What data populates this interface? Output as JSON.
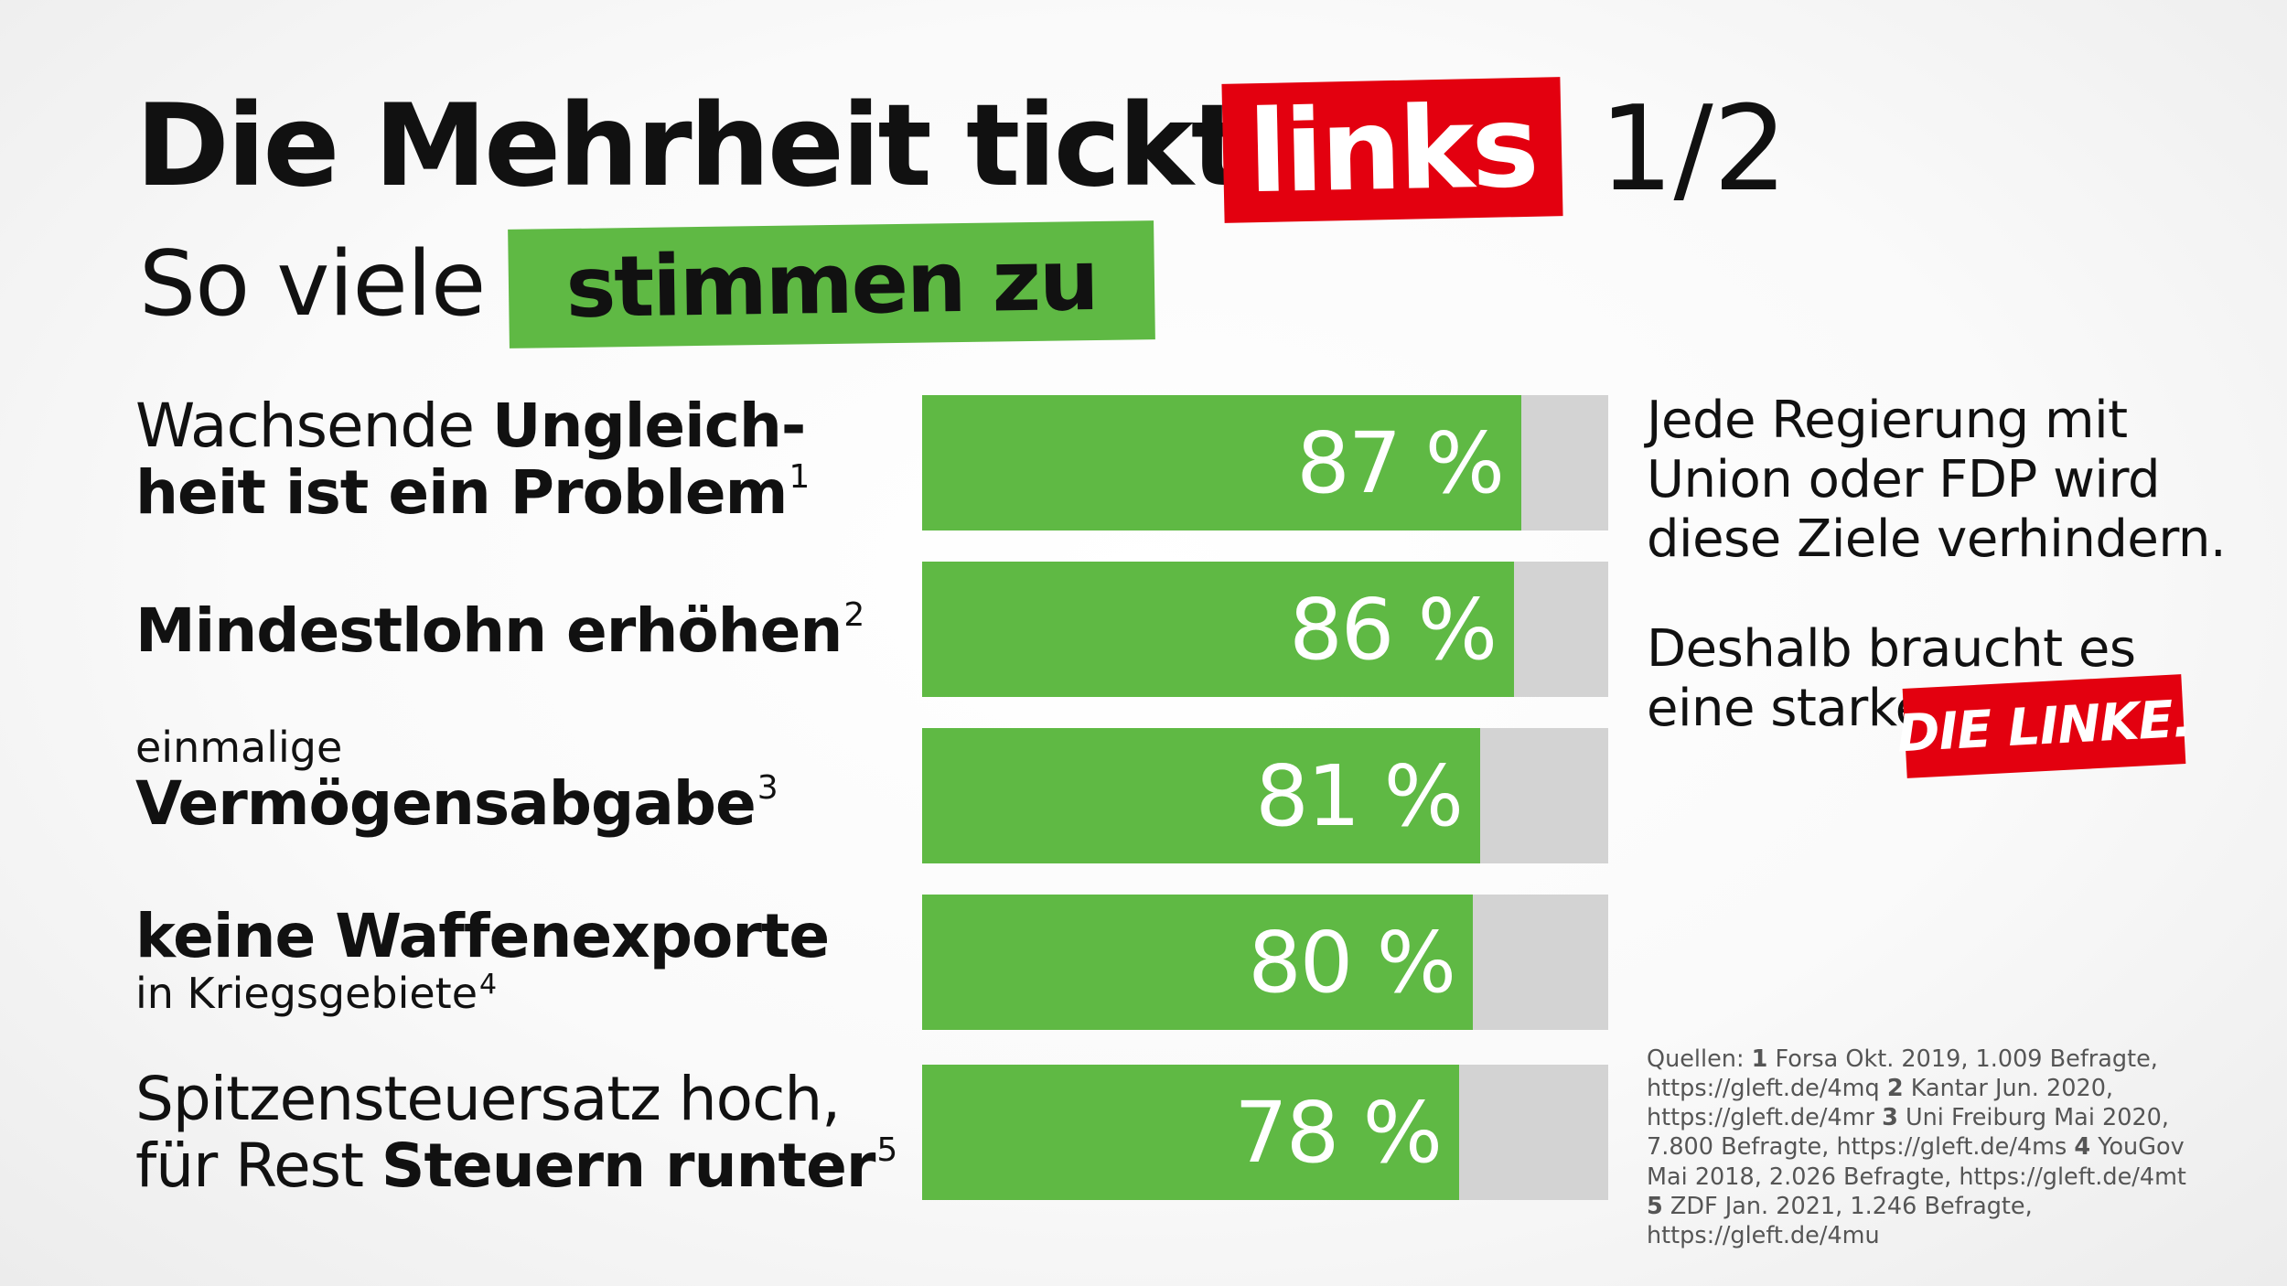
{
  "title": {
    "main": "Die Mehrheit tickt",
    "highlight": "links",
    "number": "1/2"
  },
  "subtitle": {
    "main": "So viele",
    "highlight": "stimmen zu"
  },
  "colors": {
    "red": "#e3000f",
    "green": "#5fb944",
    "bar_track": "#d3d3d3"
  },
  "rows": [
    {
      "line1_normal": "Wachsende ",
      "line1_bold": "Ungleich-",
      "line2_bold": "heit ist ein Problem",
      "sup": "1"
    },
    {
      "bold": "Mindestlohn erhöhen",
      "sup": "2"
    },
    {
      "small": "einmalige",
      "bold": "Vermögensabgabe",
      "sup": "3"
    },
    {
      "bold": "keine Waffenexporte",
      "small": "in Kriegsgebiete",
      "sup": "4"
    },
    {
      "line1_normal": "Spitzensteuersatz hoch,",
      "line2_normal": "für Rest ",
      "line2_bold": "Steuern runter",
      "sup": "5"
    }
  ],
  "side": {
    "p1": [
      "Jede Regierung mit",
      "Union oder FDP wird",
      "diese Ziele verhindern."
    ],
    "p2": [
      "Deshalb braucht es",
      "eine starke"
    ],
    "logo": "DIE LINKE."
  },
  "sources": {
    "label": "Quellen:",
    "items": [
      {
        "num": "1",
        "text": "Forsa Okt. 2019, 1.009 Befragte, https://gleft.de/4mq"
      },
      {
        "num": "2",
        "text": "Kantar Jun. 2020, https://gleft.de/4mr"
      },
      {
        "num": "3",
        "text": "Uni Freiburg Mai 2020, 7.800 Befragte, https://gleft.de/4ms"
      },
      {
        "num": "4",
        "text": "YouGov Mai 2018, 2.026 Befragte, https://gleft.de/4mt"
      },
      {
        "num": "5",
        "text": "ZDF Jan. 2021, 1.246 Befragte, https://gleft.de/4mu"
      }
    ]
  },
  "chart_data": {
    "type": "bar",
    "orientation": "horizontal",
    "categories": [
      "Wachsende Ungleichheit ist ein Problem",
      "Mindestlohn erhöhen",
      "einmalige Vermögensabgabe",
      "keine Waffenexporte in Kriegsgebiete",
      "Spitzensteuersatz hoch, für Rest Steuern runter"
    ],
    "values": [
      87,
      86,
      81,
      80,
      78
    ],
    "value_labels": [
      "87 %",
      "86 %",
      "81 %",
      "80 %",
      "78 %"
    ],
    "xlim": [
      0,
      100
    ],
    "unit": "%"
  }
}
